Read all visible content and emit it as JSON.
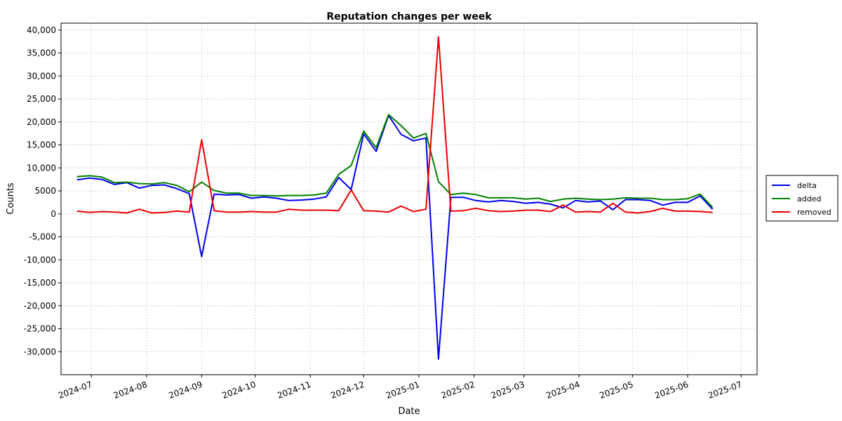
{
  "chart_data": {
    "type": "line",
    "title": "Reputation changes per week",
    "xlabel": "Date",
    "ylabel": "Counts",
    "ylim": [
      -35000,
      41500
    ],
    "xlim": [
      "2024-06-14",
      "2025-07-10"
    ],
    "x_tick_labels": [
      "2024-07",
      "2024-08",
      "2024-09",
      "2024-10",
      "2024-11",
      "2024-12",
      "2025-01",
      "2025-02",
      "2025-03",
      "2025-04",
      "2025-05",
      "2025-06",
      "2025-07"
    ],
    "y_tick_labels": [
      "40,000",
      "35,000",
      "30,000",
      "25,000",
      "20,000",
      "15,000",
      "10,000",
      "5000",
      "0",
      "-5,000",
      "-10,000",
      "-15,000",
      "-20,000",
      "-25,000",
      "-30,000"
    ],
    "y_ticks": [
      40000,
      35000,
      30000,
      25000,
      20000,
      15000,
      10000,
      5000,
      0,
      -5000,
      -10000,
      -15000,
      -20000,
      -25000,
      -30000
    ],
    "grid": true,
    "legend_position": "right",
    "x": [
      "2024-06-23",
      "2024-06-30",
      "2024-07-07",
      "2024-07-14",
      "2024-07-21",
      "2024-07-28",
      "2024-08-04",
      "2024-08-11",
      "2024-08-18",
      "2024-08-25",
      "2024-09-01",
      "2024-09-08",
      "2024-09-15",
      "2024-09-22",
      "2024-09-29",
      "2024-10-06",
      "2024-10-13",
      "2024-10-20",
      "2024-10-27",
      "2024-11-03",
      "2024-11-10",
      "2024-11-17",
      "2024-11-24",
      "2024-12-01",
      "2024-12-08",
      "2024-12-15",
      "2024-12-22",
      "2024-12-29",
      "2025-01-05",
      "2025-01-12",
      "2025-01-19",
      "2025-01-26",
      "2025-02-02",
      "2025-02-09",
      "2025-02-16",
      "2025-02-23",
      "2025-03-02",
      "2025-03-09",
      "2025-03-16",
      "2025-03-23",
      "2025-03-30",
      "2025-04-06",
      "2025-04-13",
      "2025-04-20",
      "2025-04-27",
      "2025-05-04",
      "2025-05-11",
      "2025-05-18",
      "2025-05-25",
      "2025-06-01",
      "2025-06-08",
      "2025-06-15",
      "2025-06-22"
    ],
    "series": [
      {
        "name": "delta",
        "color": "#0000ee",
        "values": [
          7400,
          7800,
          7500,
          6400,
          6800,
          5600,
          6200,
          6300,
          5500,
          4400,
          -9300,
          4300,
          4100,
          4200,
          3400,
          3700,
          3400,
          2900,
          3000,
          3200,
          3700,
          7900,
          5300,
          17400,
          13600,
          21400,
          17300,
          15900,
          16500,
          -31600,
          3600,
          3600,
          2900,
          2600,
          2900,
          2700,
          2300,
          2500,
          2100,
          1300,
          2900,
          2600,
          2800,
          900,
          3100,
          3100,
          2900,
          1900,
          2500,
          2500,
          3900,
          1000,
          null
        ]
      },
      {
        "name": "added",
        "color": "#008000",
        "values": [
          8100,
          8300,
          8000,
          6800,
          6900,
          6600,
          6500,
          6800,
          6200,
          4800,
          6900,
          5100,
          4500,
          4500,
          4000,
          4000,
          3900,
          4000,
          4000,
          4100,
          4500,
          8600,
          10500,
          18000,
          14400,
          21600,
          19200,
          16500,
          17500,
          7000,
          4200,
          4500,
          4200,
          3500,
          3500,
          3500,
          3200,
          3400,
          2700,
          3200,
          3400,
          3200,
          3100,
          3200,
          3500,
          3400,
          3400,
          3100,
          3100,
          3300,
          4300,
          1400,
          null
        ]
      },
      {
        "name": "removed",
        "color": "#ee0000",
        "values": [
          600,
          300,
          500,
          400,
          200,
          1000,
          200,
          300,
          600,
          400,
          16100,
          700,
          400,
          400,
          500,
          400,
          400,
          1000,
          800,
          800,
          800,
          700,
          5200,
          700,
          600,
          400,
          1700,
          500,
          1000,
          38500,
          600,
          700,
          1200,
          700,
          500,
          600,
          800,
          800,
          500,
          1900,
          400,
          500,
          400,
          2300,
          400,
          200,
          500,
          1200,
          600,
          600,
          500,
          300,
          null
        ]
      }
    ]
  }
}
